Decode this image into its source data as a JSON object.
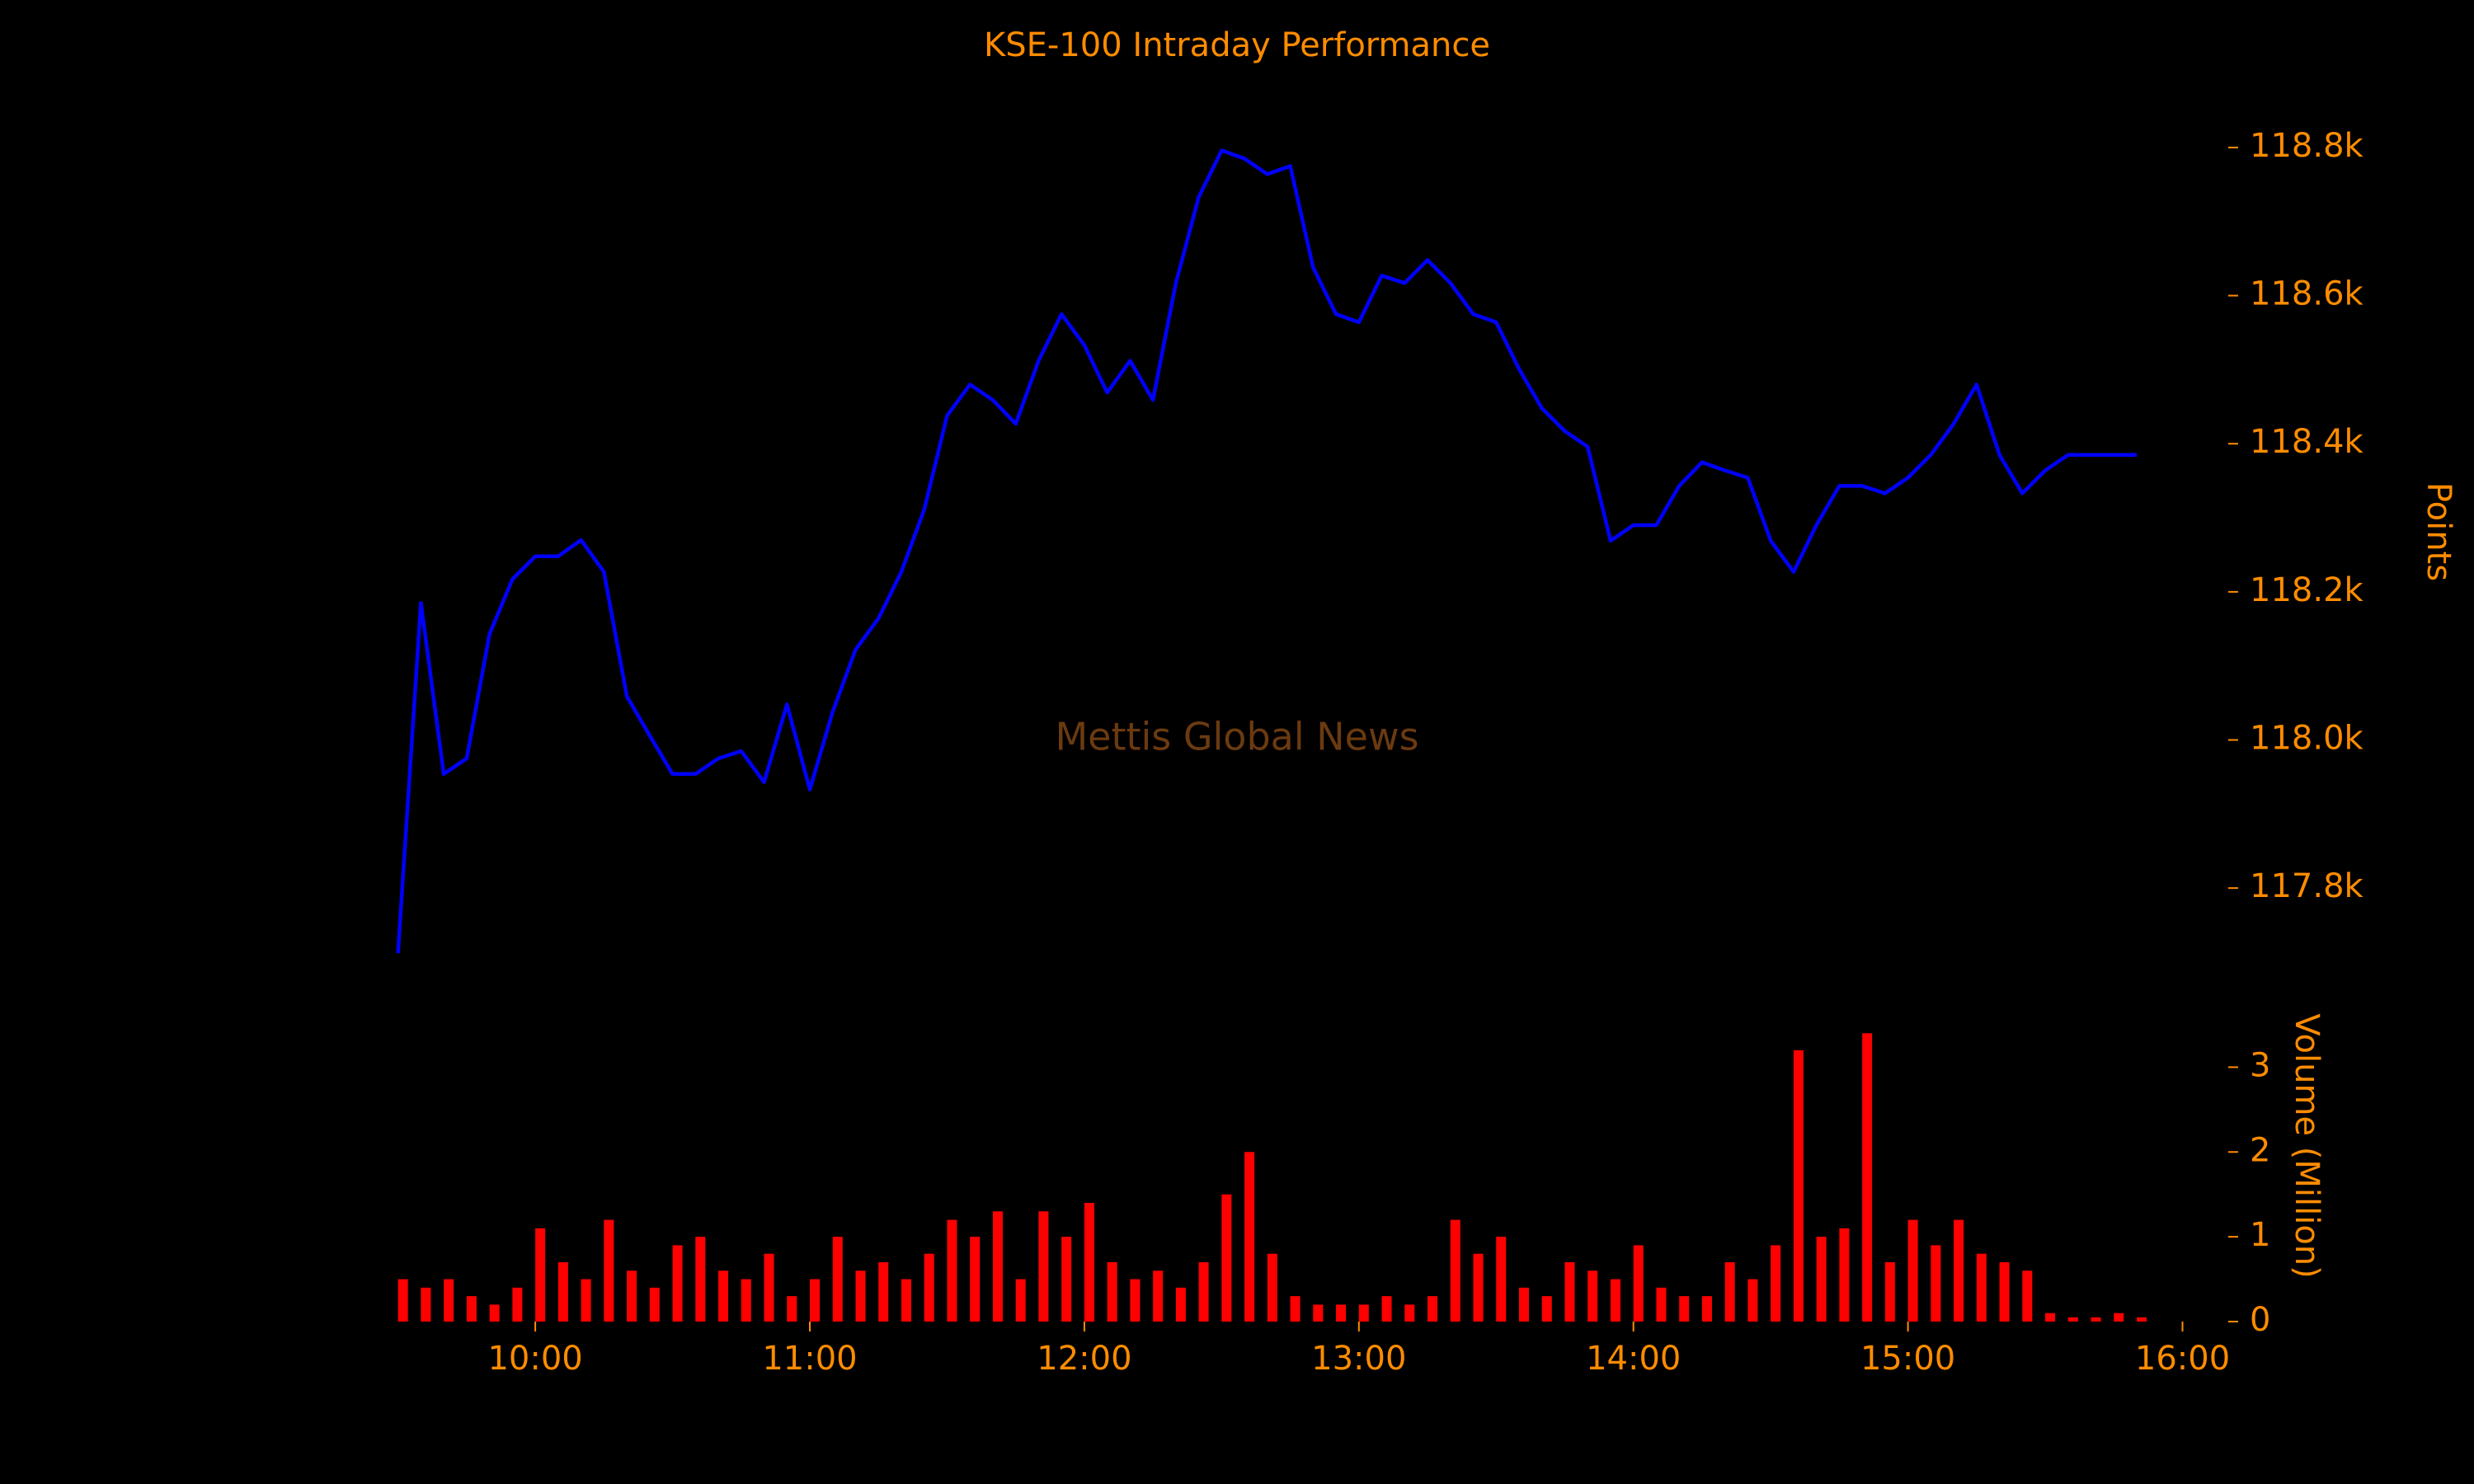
{
  "chart_data": [
    {
      "type": "line",
      "title": "KSE-100 Intraday Performance",
      "annotation": "Mettis Global News",
      "y_label": "Points",
      "x": [
        "09:30",
        "09:35",
        "09:40",
        "09:45",
        "09:50",
        "09:55",
        "10:00",
        "10:05",
        "10:10",
        "10:15",
        "10:20",
        "10:25",
        "10:30",
        "10:35",
        "10:40",
        "10:45",
        "10:50",
        "10:55",
        "11:00",
        "11:05",
        "11:10",
        "11:15",
        "11:20",
        "11:25",
        "11:30",
        "11:35",
        "11:40",
        "11:45",
        "11:50",
        "11:55",
        "12:00",
        "12:05",
        "12:10",
        "12:15",
        "12:20",
        "12:25",
        "12:30",
        "12:35",
        "12:40",
        "12:45",
        "12:50",
        "12:55",
        "13:00",
        "13:05",
        "13:10",
        "13:15",
        "13:20",
        "13:25",
        "13:30",
        "13:35",
        "13:40",
        "13:45",
        "13:50",
        "13:55",
        "14:00",
        "14:05",
        "14:10",
        "14:15",
        "14:20",
        "14:25",
        "14:30",
        "14:35",
        "14:40",
        "14:45",
        "14:50",
        "14:55",
        "15:00",
        "15:05",
        "15:10",
        "15:15",
        "15:20",
        "15:25",
        "15:30",
        "15:35",
        "15:40",
        "15:45",
        "15:50"
      ],
      "series": [
        {
          "name": "KSE-100",
          "color": "#0000ff",
          "values": [
            117712,
            118185,
            117954,
            117975,
            118143,
            118217,
            118248,
            118248,
            118270,
            118227,
            118059,
            118006,
            117954,
            117954,
            117975,
            117985,
            117943,
            118048,
            117933,
            118038,
            118122,
            118164,
            118227,
            118311,
            118438,
            118480,
            118459,
            118427,
            118512,
            118575,
            118533,
            118469,
            118512,
            118459,
            118617,
            118733,
            118796,
            118785,
            118764,
            118775,
            118638,
            118575,
            118564,
            118627,
            118617,
            118648,
            118617,
            118575,
            118564,
            118501,
            118448,
            118417,
            118396,
            118269,
            118290,
            118290,
            118343,
            118375,
            118364,
            118354,
            118269,
            118227,
            118290,
            118343,
            118343,
            118333,
            118354,
            118385,
            118427,
            118480,
            118385,
            118333,
            118364,
            118385,
            118385,
            118385,
            118385
          ]
        }
      ],
      "xlim": [
        "09:27",
        "16:10"
      ],
      "ylim": [
        117700,
        118850
      ],
      "yticks": [
        {
          "value": 117800,
          "label": "117.8k"
        },
        {
          "value": 118000,
          "label": "118.0k"
        },
        {
          "value": 118200,
          "label": "118.2k"
        },
        {
          "value": 118400,
          "label": "118.4k"
        },
        {
          "value": 118600,
          "label": "118.6k"
        },
        {
          "value": 118800,
          "label": "118.8k"
        }
      ]
    },
    {
      "type": "bar",
      "y_label": "Volume (Million)",
      "x": [
        "09:30",
        "09:35",
        "09:40",
        "09:45",
        "09:50",
        "09:55",
        "10:00",
        "10:05",
        "10:10",
        "10:15",
        "10:20",
        "10:25",
        "10:30",
        "10:35",
        "10:40",
        "10:45",
        "10:50",
        "10:55",
        "11:00",
        "11:05",
        "11:10",
        "11:15",
        "11:20",
        "11:25",
        "11:30",
        "11:35",
        "11:40",
        "11:45",
        "11:50",
        "11:55",
        "12:00",
        "12:05",
        "12:10",
        "12:15",
        "12:20",
        "12:25",
        "12:30",
        "12:35",
        "12:40",
        "12:45",
        "12:50",
        "12:55",
        "13:00",
        "13:05",
        "13:10",
        "13:15",
        "13:20",
        "13:25",
        "13:30",
        "13:35",
        "13:40",
        "13:45",
        "13:50",
        "13:55",
        "14:00",
        "14:05",
        "14:10",
        "14:15",
        "14:20",
        "14:25",
        "14:30",
        "14:35",
        "14:40",
        "14:45",
        "14:50",
        "14:55",
        "15:00",
        "15:05",
        "15:10",
        "15:15",
        "15:20",
        "15:25",
        "15:30",
        "15:35",
        "15:40",
        "15:45",
        "15:50"
      ],
      "series": [
        {
          "name": "Volume",
          "color": "#ff0000",
          "values": [
            0.5,
            0.4,
            0.5,
            0.3,
            0.2,
            0.4,
            1.1,
            0.7,
            0.5,
            1.2,
            0.6,
            0.4,
            0.9,
            1.0,
            0.6,
            0.5,
            0.8,
            0.3,
            0.5,
            1.0,
            0.6,
            0.7,
            0.5,
            0.8,
            1.2,
            1.0,
            1.3,
            0.5,
            1.3,
            1.0,
            1.4,
            0.7,
            0.5,
            0.6,
            0.4,
            0.7,
            1.5,
            2.0,
            0.8,
            0.3,
            0.2,
            0.2,
            0.2,
            0.3,
            0.2,
            0.3,
            1.2,
            0.8,
            1.0,
            0.4,
            0.3,
            0.7,
            0.6,
            0.5,
            0.9,
            0.4,
            0.3,
            0.3,
            0.7,
            0.5,
            0.9,
            3.2,
            1.0,
            1.1,
            3.4,
            0.7,
            1.2,
            0.9,
            1.2,
            0.8,
            0.7,
            0.6,
            0.1,
            0.05,
            0.05,
            0.1,
            0.05
          ]
        }
      ],
      "xlim": [
        "09:27",
        "16:10"
      ],
      "xticks": [
        "10:00",
        "11:00",
        "12:00",
        "13:00",
        "14:00",
        "15:00",
        "16:00"
      ],
      "ylim": [
        0,
        3.5
      ],
      "yticks": [
        0,
        1,
        2,
        3
      ]
    }
  ]
}
